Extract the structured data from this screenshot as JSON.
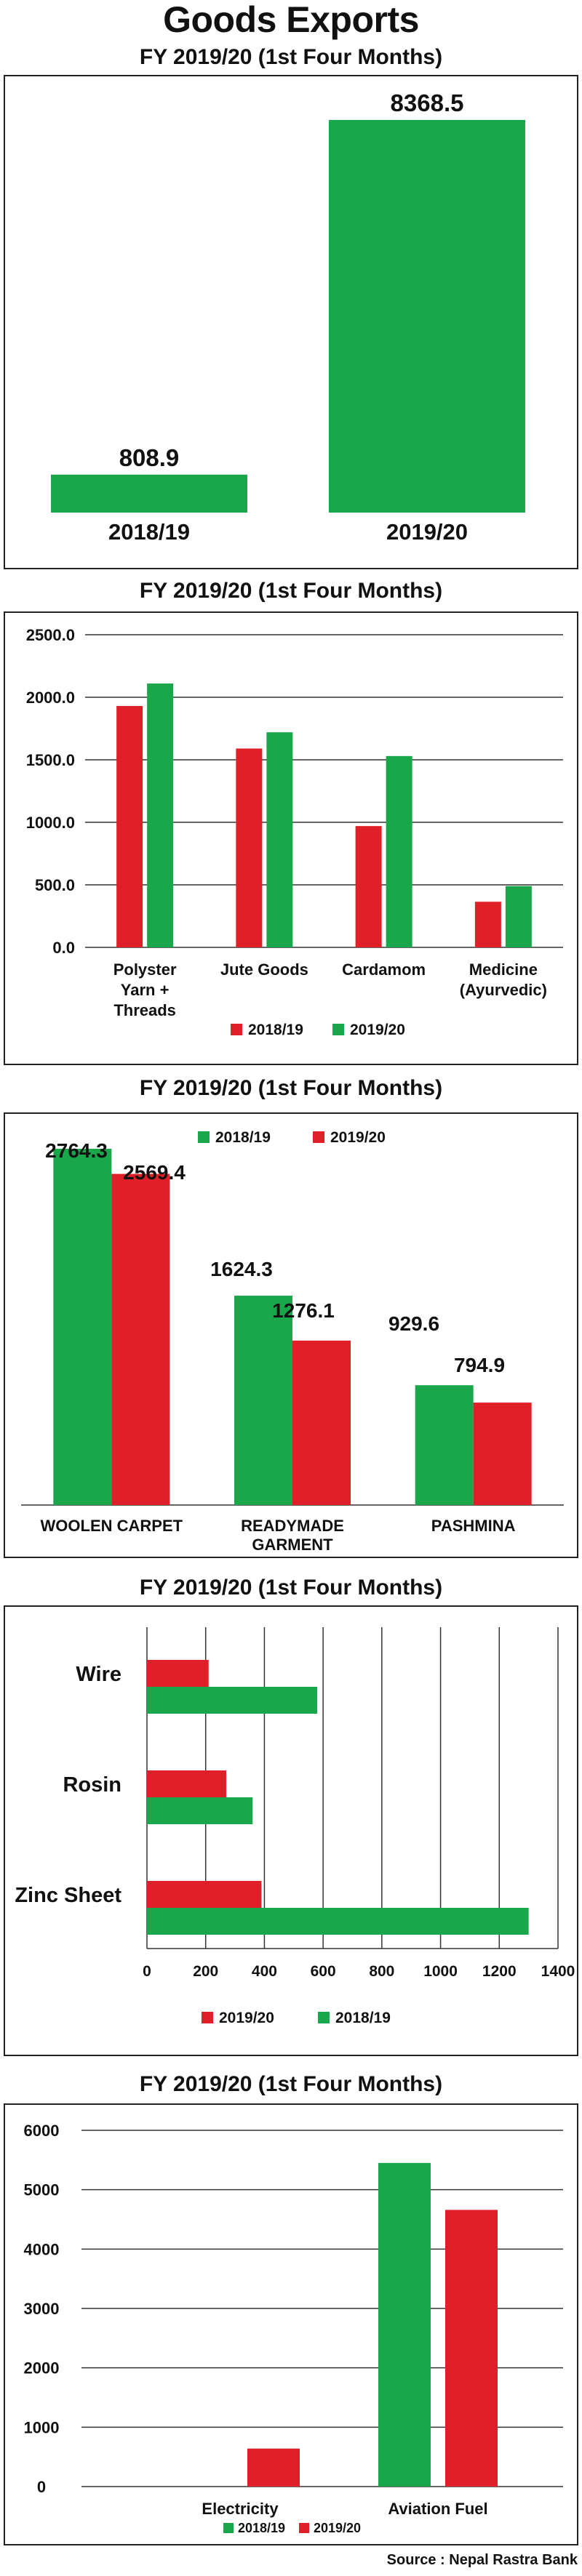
{
  "page": {
    "title": "Goods Exports",
    "source": "Source : Nepal Rastra Bank"
  },
  "colors": {
    "green": "#1aa64a",
    "red": "#e02028",
    "grid": "#333333"
  },
  "chart_data": [
    {
      "type": "bar",
      "title": "FY 2019/20 (1st Four Months)",
      "categories": [
        "2018/19",
        "2019/20"
      ],
      "values": [
        808.9,
        8368.5
      ],
      "data_labels": [
        "808.9",
        "8368.5"
      ],
      "color": "green",
      "grid": false
    },
    {
      "type": "bar",
      "title": "FY 2019/20 (1st Four Months)",
      "categories": [
        [
          "Polyster",
          "Yarn +",
          "Threads"
        ],
        [
          "Jute Goods"
        ],
        [
          "Cardamom"
        ],
        [
          "Medicine",
          "(Ayurvedic)"
        ]
      ],
      "series": [
        {
          "name": "2018/19",
          "color": "red",
          "values": [
            1930,
            1590,
            970,
            365
          ]
        },
        {
          "name": "2019/20",
          "color": "green",
          "values": [
            2110,
            1720,
            1530,
            490
          ]
        }
      ],
      "ylim": [
        0,
        2500
      ],
      "yticks": [
        "0.0",
        "500.0",
        "1000.0",
        "1500.0",
        "2000.0",
        "2500.0"
      ],
      "grid": true,
      "legend": "bottom"
    },
    {
      "type": "bar",
      "title": "FY 2019/20 (1st Four Months)",
      "categories": [
        [
          "WOOLEN CARPET"
        ],
        [
          "READYMADE",
          "GARMENT"
        ],
        [
          "PASHMINA"
        ]
      ],
      "series": [
        {
          "name": "2018/19",
          "color": "green",
          "values": [
            2764.3,
            1624.3,
            929.6
          ]
        },
        {
          "name": "2019/20",
          "color": "red",
          "values": [
            2569.4,
            1276.1,
            794.9
          ]
        }
      ],
      "data_labels": [
        [
          "2764.3",
          "1624.3",
          "929.6"
        ],
        [
          "2569.4",
          "1276.1",
          "794.9"
        ]
      ],
      "grid": false,
      "legend": "top"
    },
    {
      "type": "bar",
      "orientation": "horizontal",
      "title": "FY 2019/20 (1st Four Months)",
      "categories": [
        "Wire",
        "Rosin",
        "Zinc Sheet"
      ],
      "series": [
        {
          "name": "2019/20",
          "color": "red",
          "values": [
            210,
            270,
            390
          ]
        },
        {
          "name": "2018/19",
          "color": "green",
          "values": [
            580,
            360,
            1300
          ]
        }
      ],
      "xlim": [
        0,
        1400
      ],
      "xticks": [
        "0",
        "200",
        "400",
        "600",
        "800",
        "1000",
        "1200",
        "1400"
      ],
      "grid": true,
      "legend": "bottom"
    },
    {
      "type": "bar",
      "title": "FY 2019/20 (1st Four Months)",
      "categories": [
        "Electricity",
        "Aviation Fuel"
      ],
      "series": [
        {
          "name": "2018/19",
          "color": "green",
          "values": [
            0,
            5450
          ]
        },
        {
          "name": "2019/20",
          "color": "red",
          "values": [
            640,
            4660
          ]
        }
      ],
      "ylim": [
        0,
        6000
      ],
      "yticks": [
        "0",
        "1000",
        "2000",
        "3000",
        "4000",
        "5000",
        "6000"
      ],
      "grid": true,
      "legend": "bottom"
    }
  ]
}
